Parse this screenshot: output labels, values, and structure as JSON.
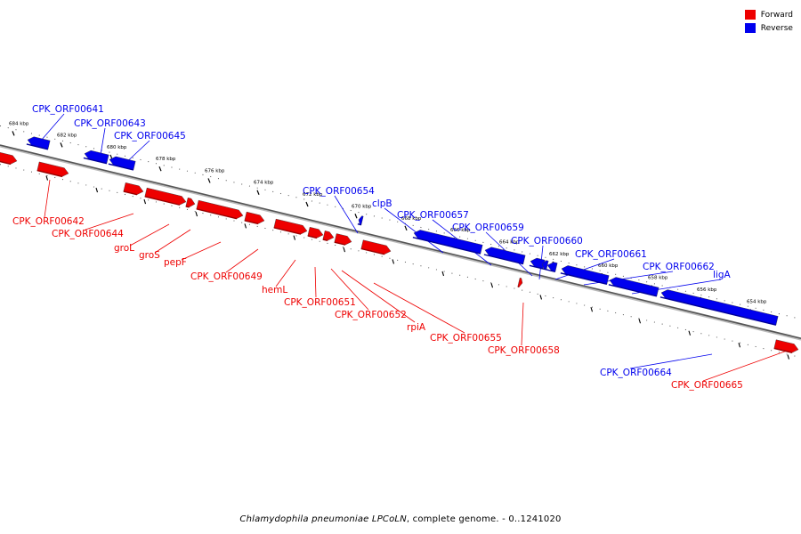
{
  "legend": [
    {
      "label": "Forward",
      "color": "#ee0000"
    },
    {
      "label": "Reverse",
      "color": "#0000ee"
    }
  ],
  "caption": {
    "organism": "Chlamydophila pneumoniae LPCoLN",
    "rest": ", complete genome. - 0..1241020"
  },
  "track": {
    "unit": "kbp",
    "ticks": [
      684,
      682,
      680,
      678,
      676,
      674,
      672,
      670,
      668,
      666,
      664,
      662,
      660,
      658,
      656,
      654
    ]
  },
  "genes": [
    {
      "name": "CPK_ORF00641",
      "strand": "reverse"
    },
    {
      "name": "CPK_ORF00643",
      "strand": "reverse"
    },
    {
      "name": "CPK_ORF00645",
      "strand": "reverse"
    },
    {
      "name": "CPK_ORF00654",
      "strand": "reverse"
    },
    {
      "name": "clpB",
      "strand": "reverse"
    },
    {
      "name": "CPK_ORF00657",
      "strand": "reverse"
    },
    {
      "name": "CPK_ORF00659",
      "strand": "reverse"
    },
    {
      "name": "CPK_ORF00660",
      "strand": "reverse"
    },
    {
      "name": "CPK_ORF00661",
      "strand": "reverse"
    },
    {
      "name": "CPK_ORF00662",
      "strand": "reverse"
    },
    {
      "name": "ligA",
      "strand": "reverse"
    },
    {
      "name": "CPK_ORF00664",
      "strand": "reverse"
    },
    {
      "name": "CPK_ORF00642",
      "strand": "forward"
    },
    {
      "name": "CPK_ORF00644",
      "strand": "forward"
    },
    {
      "name": "groL",
      "strand": "forward"
    },
    {
      "name": "groS",
      "strand": "forward"
    },
    {
      "name": "pepF",
      "strand": "forward"
    },
    {
      "name": "CPK_ORF00649",
      "strand": "forward"
    },
    {
      "name": "hemL",
      "strand": "forward"
    },
    {
      "name": "CPK_ORF00651",
      "strand": "forward"
    },
    {
      "name": "CPK_ORF00652",
      "strand": "forward"
    },
    {
      "name": "rpiA",
      "strand": "forward"
    },
    {
      "name": "CPK_ORF00655",
      "strand": "forward"
    },
    {
      "name": "CPK_ORF00658",
      "strand": "forward"
    },
    {
      "name": "CPK_ORF00665",
      "strand": "forward"
    }
  ]
}
